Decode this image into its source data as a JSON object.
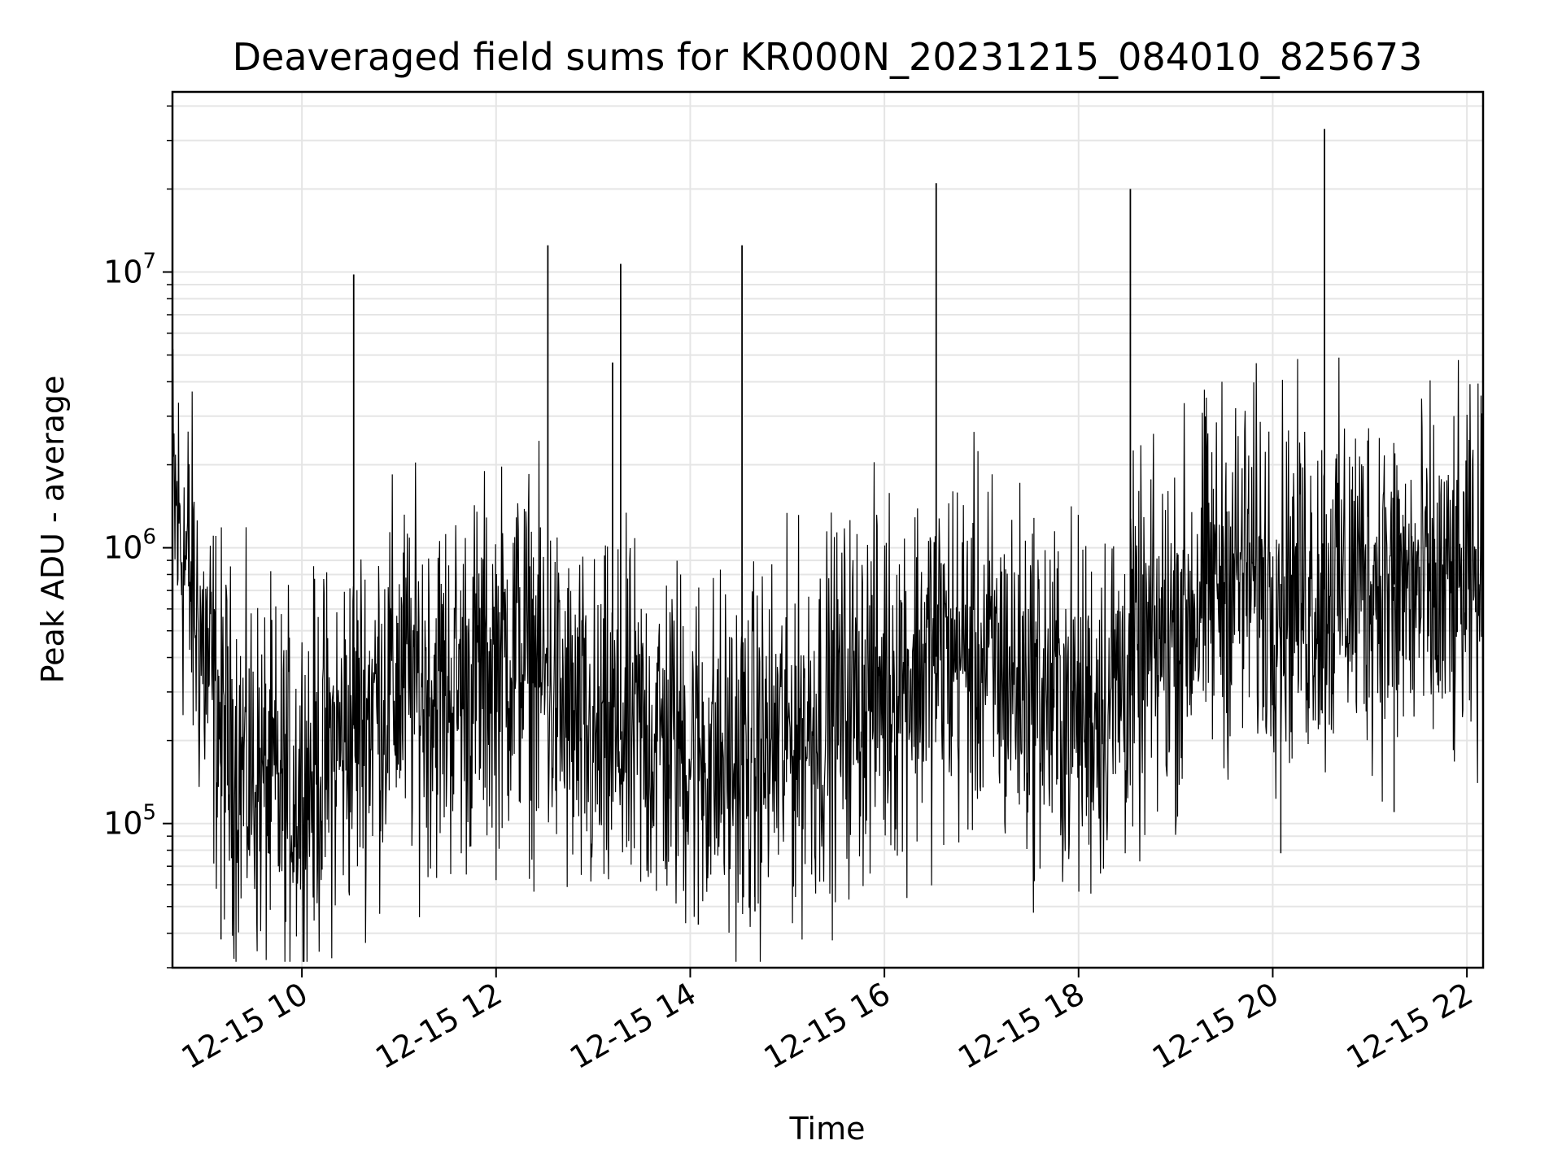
{
  "chart_data": {
    "type": "line",
    "title": "Deaveraged field sums for KR000N_20231215_084010_825673",
    "xlabel": "Time",
    "ylabel": "Peak ADU - average",
    "y_scale": "log",
    "ylim": [
      30000,
      45000000
    ],
    "xlim": [
      "2023-12-15 08:40",
      "2023-12-15 22:10"
    ],
    "grid": true,
    "line_color": "#000000",
    "x_ticks": [
      {
        "t": "2023-12-15 10:00",
        "label": "12-15 10"
      },
      {
        "t": "2023-12-15 12:00",
        "label": "12-15 12"
      },
      {
        "t": "2023-12-15 14:00",
        "label": "12-15 14"
      },
      {
        "t": "2023-12-15 16:00",
        "label": "12-15 16"
      },
      {
        "t": "2023-12-15 18:00",
        "label": "12-15 18"
      },
      {
        "t": "2023-12-15 20:00",
        "label": "12-15 20"
      },
      {
        "t": "2023-12-15 22:00",
        "label": "12-15 22"
      }
    ],
    "y_ticks": [
      {
        "value": 100000,
        "base": "10",
        "exp": "5"
      },
      {
        "value": 1000000,
        "base": "10",
        "exp": "6"
      },
      {
        "value": 10000000,
        "base": "10",
        "exp": "7"
      }
    ],
    "series": [
      {
        "x": [
          "2023-12-15 08:40",
          "2023-12-15 08:50",
          "2023-12-15 09:00",
          "2023-12-15 09:15",
          "2023-12-15 09:30",
          "2023-12-15 09:45",
          "2023-12-15 10:00",
          "2023-12-15 10:15",
          "2023-12-15 10:30",
          "2023-12-15 10:45",
          "2023-12-15 11:00",
          "2023-12-15 11:15",
          "2023-12-15 11:30",
          "2023-12-15 11:45",
          "2023-12-15 12:00",
          "2023-12-15 12:15",
          "2023-12-15 12:30",
          "2023-12-15 12:45",
          "2023-12-15 13:00",
          "2023-12-15 13:15",
          "2023-12-15 13:30",
          "2023-12-15 13:45",
          "2023-12-15 14:00",
          "2023-12-15 14:15",
          "2023-12-15 14:30",
          "2023-12-15 14:45",
          "2023-12-15 15:00",
          "2023-12-15 15:15",
          "2023-12-15 15:30",
          "2023-12-15 15:45",
          "2023-12-15 16:00",
          "2023-12-15 16:15",
          "2023-12-15 16:30",
          "2023-12-15 16:45",
          "2023-12-15 17:00",
          "2023-12-15 17:15",
          "2023-12-15 17:30",
          "2023-12-15 17:45",
          "2023-12-15 18:00",
          "2023-12-15 18:15",
          "2023-12-15 18:30",
          "2023-12-15 18:45",
          "2023-12-15 19:00",
          "2023-12-15 19:15",
          "2023-12-15 19:30",
          "2023-12-15 19:45",
          "2023-12-15 20:00",
          "2023-12-15 20:15",
          "2023-12-15 20:30",
          "2023-12-15 20:45",
          "2023-12-15 21:00",
          "2023-12-15 21:15",
          "2023-12-15 21:30",
          "2023-12-15 21:45",
          "2023-12-15 22:00",
          "2023-12-15 22:10"
        ],
        "y": [
          1500000,
          800000,
          400000,
          180000,
          150000,
          130000,
          140000,
          170000,
          220000,
          280000,
          330000,
          320000,
          300000,
          330000,
          380000,
          430000,
          330000,
          230000,
          180000,
          200000,
          210000,
          200000,
          190000,
          170000,
          160000,
          180000,
          200000,
          230000,
          260000,
          300000,
          330000,
          360000,
          400000,
          420000,
          400000,
          350000,
          320000,
          280000,
          250000,
          280000,
          350000,
          420000,
          520000,
          680000,
          800000,
          820000,
          750000,
          720000,
          700000,
          750000,
          800000,
          720000,
          680000,
          650000,
          700000,
          750000
        ]
      }
    ],
    "spikes": [
      {
        "t": "2023-12-15 10:32",
        "value": 9800000
      },
      {
        "t": "2023-12-15 12:32",
        "value": 12500000
      },
      {
        "t": "2023-12-15 13:12",
        "value": 4700000
      },
      {
        "t": "2023-12-15 13:17",
        "value": 10700000
      },
      {
        "t": "2023-12-15 14:32",
        "value": 12500000
      },
      {
        "t": "2023-12-15 16:32",
        "value": 21000000
      },
      {
        "t": "2023-12-15 18:32",
        "value": 20000000
      },
      {
        "t": "2023-12-15 20:32",
        "value": 33000000
      }
    ],
    "dips": [
      {
        "t": "2023-12-15 09:10",
        "value": 38000
      },
      {
        "t": "2023-12-15 09:50",
        "value": 44000
      },
      {
        "t": "2023-12-15 14:05",
        "value": 43000
      },
      {
        "t": "2023-12-15 14:40",
        "value": 48000
      },
      {
        "t": "2023-12-15 20:05",
        "value": 78000
      },
      {
        "t": "2023-12-15 21:15",
        "value": 110000
      }
    ]
  }
}
